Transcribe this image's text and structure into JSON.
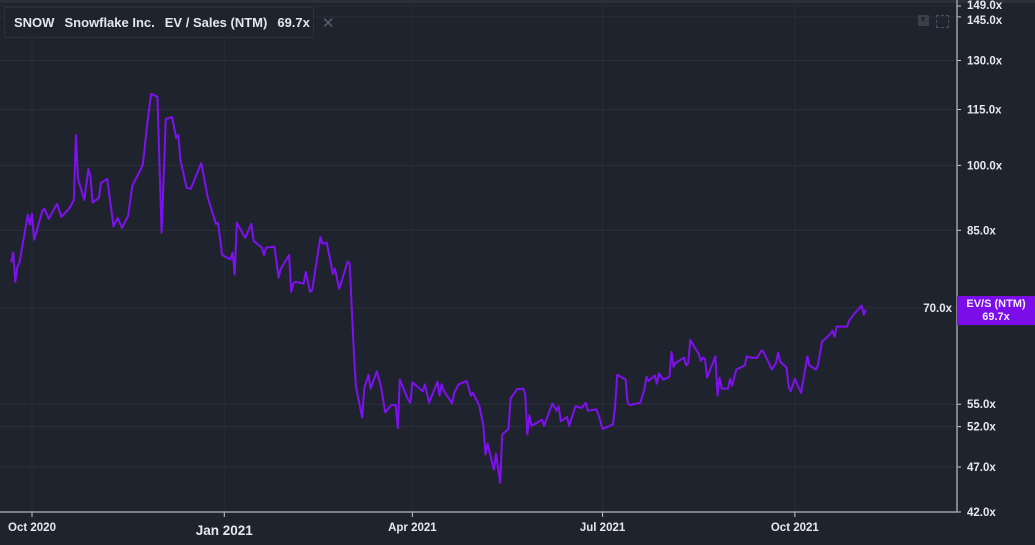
{
  "legend": {
    "ticker": "SNOW",
    "company": "Snowflake Inc.",
    "metric": "EV / Sales (NTM)",
    "value": "69.7x",
    "close_icon": "close-icon",
    "color": "#7f10f0"
  },
  "toolbar": {
    "icons": [
      "download-icon",
      "expand-icon"
    ]
  },
  "price_label": {
    "title": "EV/S (NTM)",
    "value": "69.7x",
    "color": "#7a0de8"
  },
  "chart_data": {
    "type": "line",
    "title": "",
    "xlabel": "",
    "ylabel": "",
    "y_scale": "log",
    "ylim": [
      42,
      149
    ],
    "grid": true,
    "y_ticks": [
      "149.0x",
      "145.0x",
      "130.0x",
      "115.0x",
      "100.0x",
      "85.0x",
      "70.0x",
      "55.0x",
      "52.0x",
      "47.0x",
      "42.0x"
    ],
    "y_tick_values": [
      149,
      145,
      130,
      115,
      100,
      85,
      70,
      55,
      52,
      47,
      42
    ],
    "x_ticks": [
      {
        "label": "Oct 2020",
        "date": "2020-10-01",
        "year": false
      },
      {
        "label": "Jan 2021",
        "date": "2021-01-01",
        "year": true
      },
      {
        "label": "Apr 2021",
        "date": "2021-04-01",
        "year": false
      },
      {
        "label": "Jul 2021",
        "date": "2021-07-01",
        "year": false
      },
      {
        "label": "Oct 2021",
        "date": "2021-10-01",
        "year": false
      }
    ],
    "series": [
      {
        "name": "EV / Sales (NTM)",
        "color": "#7f10f0",
        "points": [
          [
            "2020-09-21",
            78.4
          ],
          [
            "2020-09-22",
            80.4
          ],
          [
            "2020-09-23",
            74.7
          ],
          [
            "2020-09-24",
            77.6
          ],
          [
            "2020-09-25",
            78.4
          ],
          [
            "2020-09-29",
            88.4
          ],
          [
            "2020-09-30",
            86.2
          ],
          [
            "2020-10-01",
            88.6
          ],
          [
            "2020-10-02",
            83.0
          ],
          [
            "2020-10-06",
            89.3
          ],
          [
            "2020-10-07",
            89.7
          ],
          [
            "2020-10-09",
            87.5
          ],
          [
            "2020-10-13",
            90.8
          ],
          [
            "2020-10-15",
            87.9
          ],
          [
            "2020-10-19",
            89.9
          ],
          [
            "2020-10-21",
            91.7
          ],
          [
            "2020-10-22",
            107.9
          ],
          [
            "2020-10-23",
            96.7
          ],
          [
            "2020-10-26",
            91.7
          ],
          [
            "2020-10-28",
            99.1
          ],
          [
            "2020-10-29",
            97.2
          ],
          [
            "2020-10-30",
            91.1
          ],
          [
            "2020-11-02",
            92.2
          ],
          [
            "2020-11-03",
            95.7
          ],
          [
            "2020-11-06",
            96.7
          ],
          [
            "2020-11-09",
            85.8
          ],
          [
            "2020-11-11",
            87.7
          ],
          [
            "2020-11-13",
            85.5
          ],
          [
            "2020-11-16",
            88.1
          ],
          [
            "2020-11-18",
            95.0
          ],
          [
            "2020-11-23",
            100.1
          ],
          [
            "2020-11-25",
            110.1
          ],
          [
            "2020-11-27",
            119.6
          ],
          [
            "2020-11-30",
            118.7
          ],
          [
            "2020-12-02",
            84.5
          ],
          [
            "2020-12-04",
            112.3
          ],
          [
            "2020-12-07",
            112.9
          ],
          [
            "2020-12-09",
            107.1
          ],
          [
            "2020-12-10",
            107.9
          ],
          [
            "2020-12-11",
            101.4
          ],
          [
            "2020-12-14",
            94.5
          ],
          [
            "2020-12-16",
            94.3
          ],
          [
            "2020-12-21",
            100.6
          ],
          [
            "2020-12-24",
            92.4
          ],
          [
            "2020-12-28",
            86.4
          ],
          [
            "2020-12-29",
            86.6
          ],
          [
            "2020-12-31",
            79.9
          ],
          [
            "2021-01-04",
            79.0
          ],
          [
            "2021-01-05",
            80.4
          ],
          [
            "2021-01-06",
            76.1
          ],
          [
            "2021-01-07",
            86.6
          ],
          [
            "2021-01-11",
            83.4
          ],
          [
            "2021-01-14",
            86.4
          ],
          [
            "2021-01-15",
            82.8
          ],
          [
            "2021-01-19",
            81.4
          ],
          [
            "2021-01-20",
            79.9
          ],
          [
            "2021-01-21",
            81.4
          ],
          [
            "2021-01-25",
            81.6
          ],
          [
            "2021-01-27",
            75.5
          ],
          [
            "2021-01-28",
            77.2
          ],
          [
            "2021-02-01",
            79.9
          ],
          [
            "2021-02-02",
            72.9
          ],
          [
            "2021-02-03",
            74.4
          ],
          [
            "2021-02-04",
            74.7
          ],
          [
            "2021-02-08",
            74.4
          ],
          [
            "2021-02-09",
            76.6
          ],
          [
            "2021-02-11",
            72.9
          ],
          [
            "2021-02-12",
            73.1
          ],
          [
            "2021-02-16",
            83.6
          ],
          [
            "2021-02-17",
            82.2
          ],
          [
            "2021-02-19",
            82.4
          ],
          [
            "2021-02-22",
            76.2
          ],
          [
            "2021-02-23",
            77.2
          ],
          [
            "2021-02-25",
            73.4
          ],
          [
            "2021-03-01",
            78.6
          ],
          [
            "2021-03-02",
            78.2
          ],
          [
            "2021-03-03",
            69.7
          ],
          [
            "2021-03-04",
            62.6
          ],
          [
            "2021-03-05",
            57.5
          ],
          [
            "2021-03-08",
            53.2
          ],
          [
            "2021-03-09",
            57.3
          ],
          [
            "2021-03-11",
            59.2
          ],
          [
            "2021-03-12",
            57.2
          ],
          [
            "2021-03-15",
            59.7
          ],
          [
            "2021-03-17",
            57.5
          ],
          [
            "2021-03-19",
            53.9
          ],
          [
            "2021-03-22",
            54.9
          ],
          [
            "2021-03-24",
            54.9
          ],
          [
            "2021-03-25",
            51.8
          ],
          [
            "2021-03-26",
            58.5
          ],
          [
            "2021-03-30",
            55.6
          ],
          [
            "2021-03-31",
            55.2
          ],
          [
            "2021-04-01",
            58.1
          ],
          [
            "2021-04-06",
            56.8
          ],
          [
            "2021-04-07",
            57.8
          ],
          [
            "2021-04-09",
            55.2
          ],
          [
            "2021-04-13",
            58.2
          ],
          [
            "2021-04-14",
            56.2
          ],
          [
            "2021-04-15",
            57.8
          ],
          [
            "2021-04-16",
            56.9
          ],
          [
            "2021-04-20",
            55.1
          ],
          [
            "2021-04-21",
            56.6
          ],
          [
            "2021-04-23",
            57.8
          ],
          [
            "2021-04-27",
            58.3
          ],
          [
            "2021-04-29",
            56.2
          ],
          [
            "2021-04-30",
            56.6
          ],
          [
            "2021-05-03",
            54.8
          ],
          [
            "2021-05-05",
            52.1
          ],
          [
            "2021-05-06",
            48.5
          ],
          [
            "2021-05-07",
            49.8
          ],
          [
            "2021-05-10",
            46.7
          ],
          [
            "2021-05-11",
            48.6
          ],
          [
            "2021-05-13",
            45.2
          ],
          [
            "2021-05-14",
            51.0
          ],
          [
            "2021-05-17",
            51.7
          ],
          [
            "2021-05-18",
            55.8
          ],
          [
            "2021-05-21",
            57.1
          ],
          [
            "2021-05-24",
            57.2
          ],
          [
            "2021-05-25",
            56.4
          ],
          [
            "2021-05-26",
            51.0
          ],
          [
            "2021-05-27",
            53.5
          ],
          [
            "2021-05-28",
            52.1
          ],
          [
            "2021-06-02",
            52.9
          ],
          [
            "2021-06-03",
            52.1
          ],
          [
            "2021-06-07",
            55.1
          ],
          [
            "2021-06-09",
            54.1
          ],
          [
            "2021-06-10",
            54.7
          ],
          [
            "2021-06-11",
            52.7
          ],
          [
            "2021-06-14",
            53.3
          ],
          [
            "2021-06-15",
            52.1
          ],
          [
            "2021-06-18",
            54.7
          ],
          [
            "2021-06-21",
            54.5
          ],
          [
            "2021-06-23",
            55.2
          ],
          [
            "2021-06-24",
            54.1
          ],
          [
            "2021-06-28",
            54.3
          ],
          [
            "2021-06-29",
            53.6
          ],
          [
            "2021-07-01",
            51.7
          ],
          [
            "2021-07-06",
            52.3
          ],
          [
            "2021-07-07",
            54.7
          ],
          [
            "2021-07-08",
            59.2
          ],
          [
            "2021-07-12",
            58.5
          ],
          [
            "2021-07-13",
            55.2
          ],
          [
            "2021-07-14",
            54.9
          ],
          [
            "2021-07-19",
            55.2
          ],
          [
            "2021-07-21",
            57.1
          ],
          [
            "2021-07-22",
            58.9
          ],
          [
            "2021-07-23",
            58.3
          ],
          [
            "2021-07-26",
            59.1
          ],
          [
            "2021-07-27",
            57.9
          ],
          [
            "2021-07-28",
            59.4
          ],
          [
            "2021-07-30",
            58.5
          ],
          [
            "2021-08-02",
            58.9
          ],
          [
            "2021-08-03",
            62.7
          ],
          [
            "2021-08-04",
            60.4
          ],
          [
            "2021-08-05",
            61.0
          ],
          [
            "2021-08-09",
            61.8
          ],
          [
            "2021-08-10",
            60.6
          ],
          [
            "2021-08-11",
            61.0
          ],
          [
            "2021-08-12",
            64.6
          ],
          [
            "2021-08-16",
            62.4
          ],
          [
            "2021-08-17",
            61.3
          ],
          [
            "2021-08-18",
            61.8
          ],
          [
            "2021-08-19",
            61.6
          ],
          [
            "2021-08-20",
            58.8
          ],
          [
            "2021-08-24",
            62.0
          ],
          [
            "2021-08-25",
            56.2
          ],
          [
            "2021-08-26",
            58.8
          ],
          [
            "2021-08-27",
            57.2
          ],
          [
            "2021-08-30",
            57.2
          ],
          [
            "2021-08-31",
            58.6
          ],
          [
            "2021-09-01",
            57.6
          ],
          [
            "2021-09-03",
            60.0
          ],
          [
            "2021-09-07",
            60.6
          ],
          [
            "2021-09-08",
            62.0
          ],
          [
            "2021-09-10",
            61.8
          ],
          [
            "2021-09-13",
            61.8
          ],
          [
            "2021-09-15",
            62.9
          ],
          [
            "2021-09-16",
            62.7
          ],
          [
            "2021-09-20",
            60.0
          ],
          [
            "2021-09-22",
            61.0
          ],
          [
            "2021-09-23",
            62.6
          ],
          [
            "2021-09-24",
            61.2
          ],
          [
            "2021-09-27",
            60.3
          ],
          [
            "2021-09-28",
            57.5
          ],
          [
            "2021-09-29",
            56.8
          ],
          [
            "2021-10-01",
            58.6
          ],
          [
            "2021-10-04",
            56.6
          ],
          [
            "2021-10-07",
            62.0
          ],
          [
            "2021-10-08",
            60.6
          ],
          [
            "2021-10-11",
            60.0
          ],
          [
            "2021-10-12",
            60.6
          ],
          [
            "2021-10-14",
            64.3
          ],
          [
            "2021-10-18",
            65.6
          ],
          [
            "2021-10-19",
            66.1
          ],
          [
            "2021-10-20",
            65.1
          ],
          [
            "2021-10-21",
            66.8
          ],
          [
            "2021-10-26",
            66.8
          ],
          [
            "2021-10-27",
            67.8
          ],
          [
            "2021-10-29",
            68.8
          ],
          [
            "2021-11-02",
            70.4
          ],
          [
            "2021-11-03",
            68.8
          ],
          [
            "2021-11-04",
            69.7
          ]
        ]
      }
    ]
  }
}
